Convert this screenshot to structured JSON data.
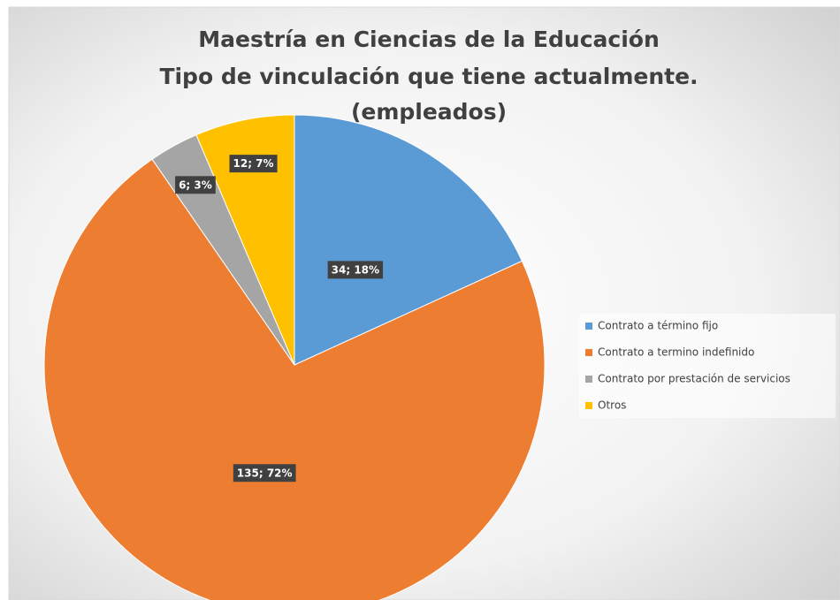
{
  "chart_data": {
    "type": "pie",
    "title": [
      "Maestría en Ciencias de la Educación",
      "Tipo de vinculación que tiene actualmente.",
      "(empleados)"
    ],
    "categories": [
      "Contrato a término fijo",
      "Contrato a termino indefinido",
      "Contrato por prestación de servicios",
      "Otros"
    ],
    "values": [
      34,
      135,
      6,
      12
    ],
    "value_labels": [
      "34; 18%",
      "135; 72%",
      "6; 3%",
      "12; 7%"
    ],
    "colors": [
      "#5b9bd5",
      "#ed7d31",
      "#a5a5a5",
      "#ffc000"
    ],
    "legend": "right"
  }
}
